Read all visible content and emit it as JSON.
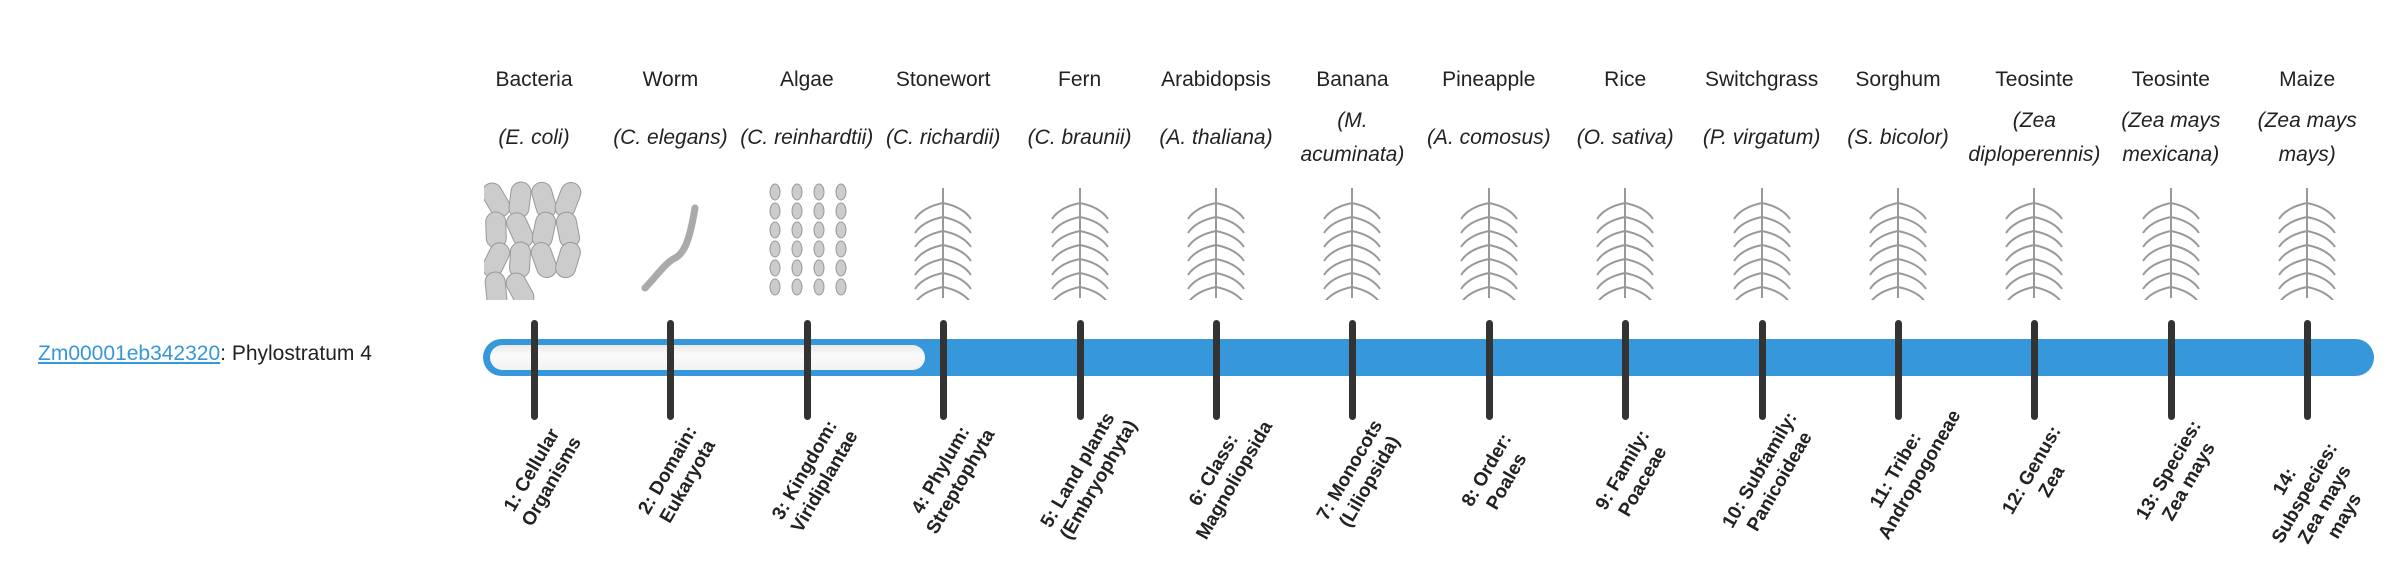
{
  "gene": {
    "id": "Zm00001eb342320",
    "separator": ": ",
    "phylostratum_label": "Phylostratum 4"
  },
  "progress": {
    "current_stratum": 4,
    "total_strata": 14
  },
  "colors": {
    "accent": "#3797db",
    "tick": "#333333"
  },
  "organisms": [
    {
      "common": "Bacteria",
      "scientific": "(E. coli)",
      "icon": "bacteria-image"
    },
    {
      "common": "Worm",
      "scientific": "(C. elegans)",
      "icon": "worm-image"
    },
    {
      "common": "Algae",
      "scientific": "(C. reinhardtii)",
      "icon": "algae-image"
    },
    {
      "common": "Stonewort",
      "scientific": "(C. richardii)",
      "icon": "stonewort-image"
    },
    {
      "common": "Fern",
      "scientific": "(C. braunii)",
      "icon": "fern-image"
    },
    {
      "common": "Arabidopsis",
      "scientific": "(A. thaliana)",
      "icon": "arabidopsis-image"
    },
    {
      "common": "Banana",
      "scientific": "(M. acuminata)",
      "icon": "banana-image"
    },
    {
      "common": "Pineapple",
      "scientific": "(A. comosus)",
      "icon": "pineapple-image"
    },
    {
      "common": "Rice",
      "scientific": "(O. sativa)",
      "icon": "rice-image"
    },
    {
      "common": "Switchgrass",
      "scientific": "(P. virgatum)",
      "icon": "switchgrass-image"
    },
    {
      "common": "Sorghum",
      "scientific": "(S. bicolor)",
      "icon": "sorghum-image"
    },
    {
      "common": "Teosinte",
      "scientific": "(Zea diploperennis)",
      "icon": "teosinte-image"
    },
    {
      "common": "Teosinte",
      "scientific": "(Zea mays mexicana)",
      "icon": "teosinte-image"
    },
    {
      "common": "Maize",
      "scientific": "(Zea mays mays)",
      "icon": "maize-image"
    }
  ],
  "strata": [
    "1: Cellular Organisms",
    "2: Domain: Eukaryota",
    "3: Kingdom: Viridiplantae",
    "4: Phylum: Streptophyta",
    "5: Land plants (Embryophyta)",
    "6: Class: Magnoliopsida",
    "7: Monocots (Liliopsida)",
    "8: Order: Poales",
    "9: Family: Poaceae",
    "10: Subfamily: Panicoideae",
    "11: Tribe: Andropogoneae",
    "12: Genus: Zea",
    "13: Species: Zea mays",
    "14: Subspecies: Zea mays mays"
  ]
}
